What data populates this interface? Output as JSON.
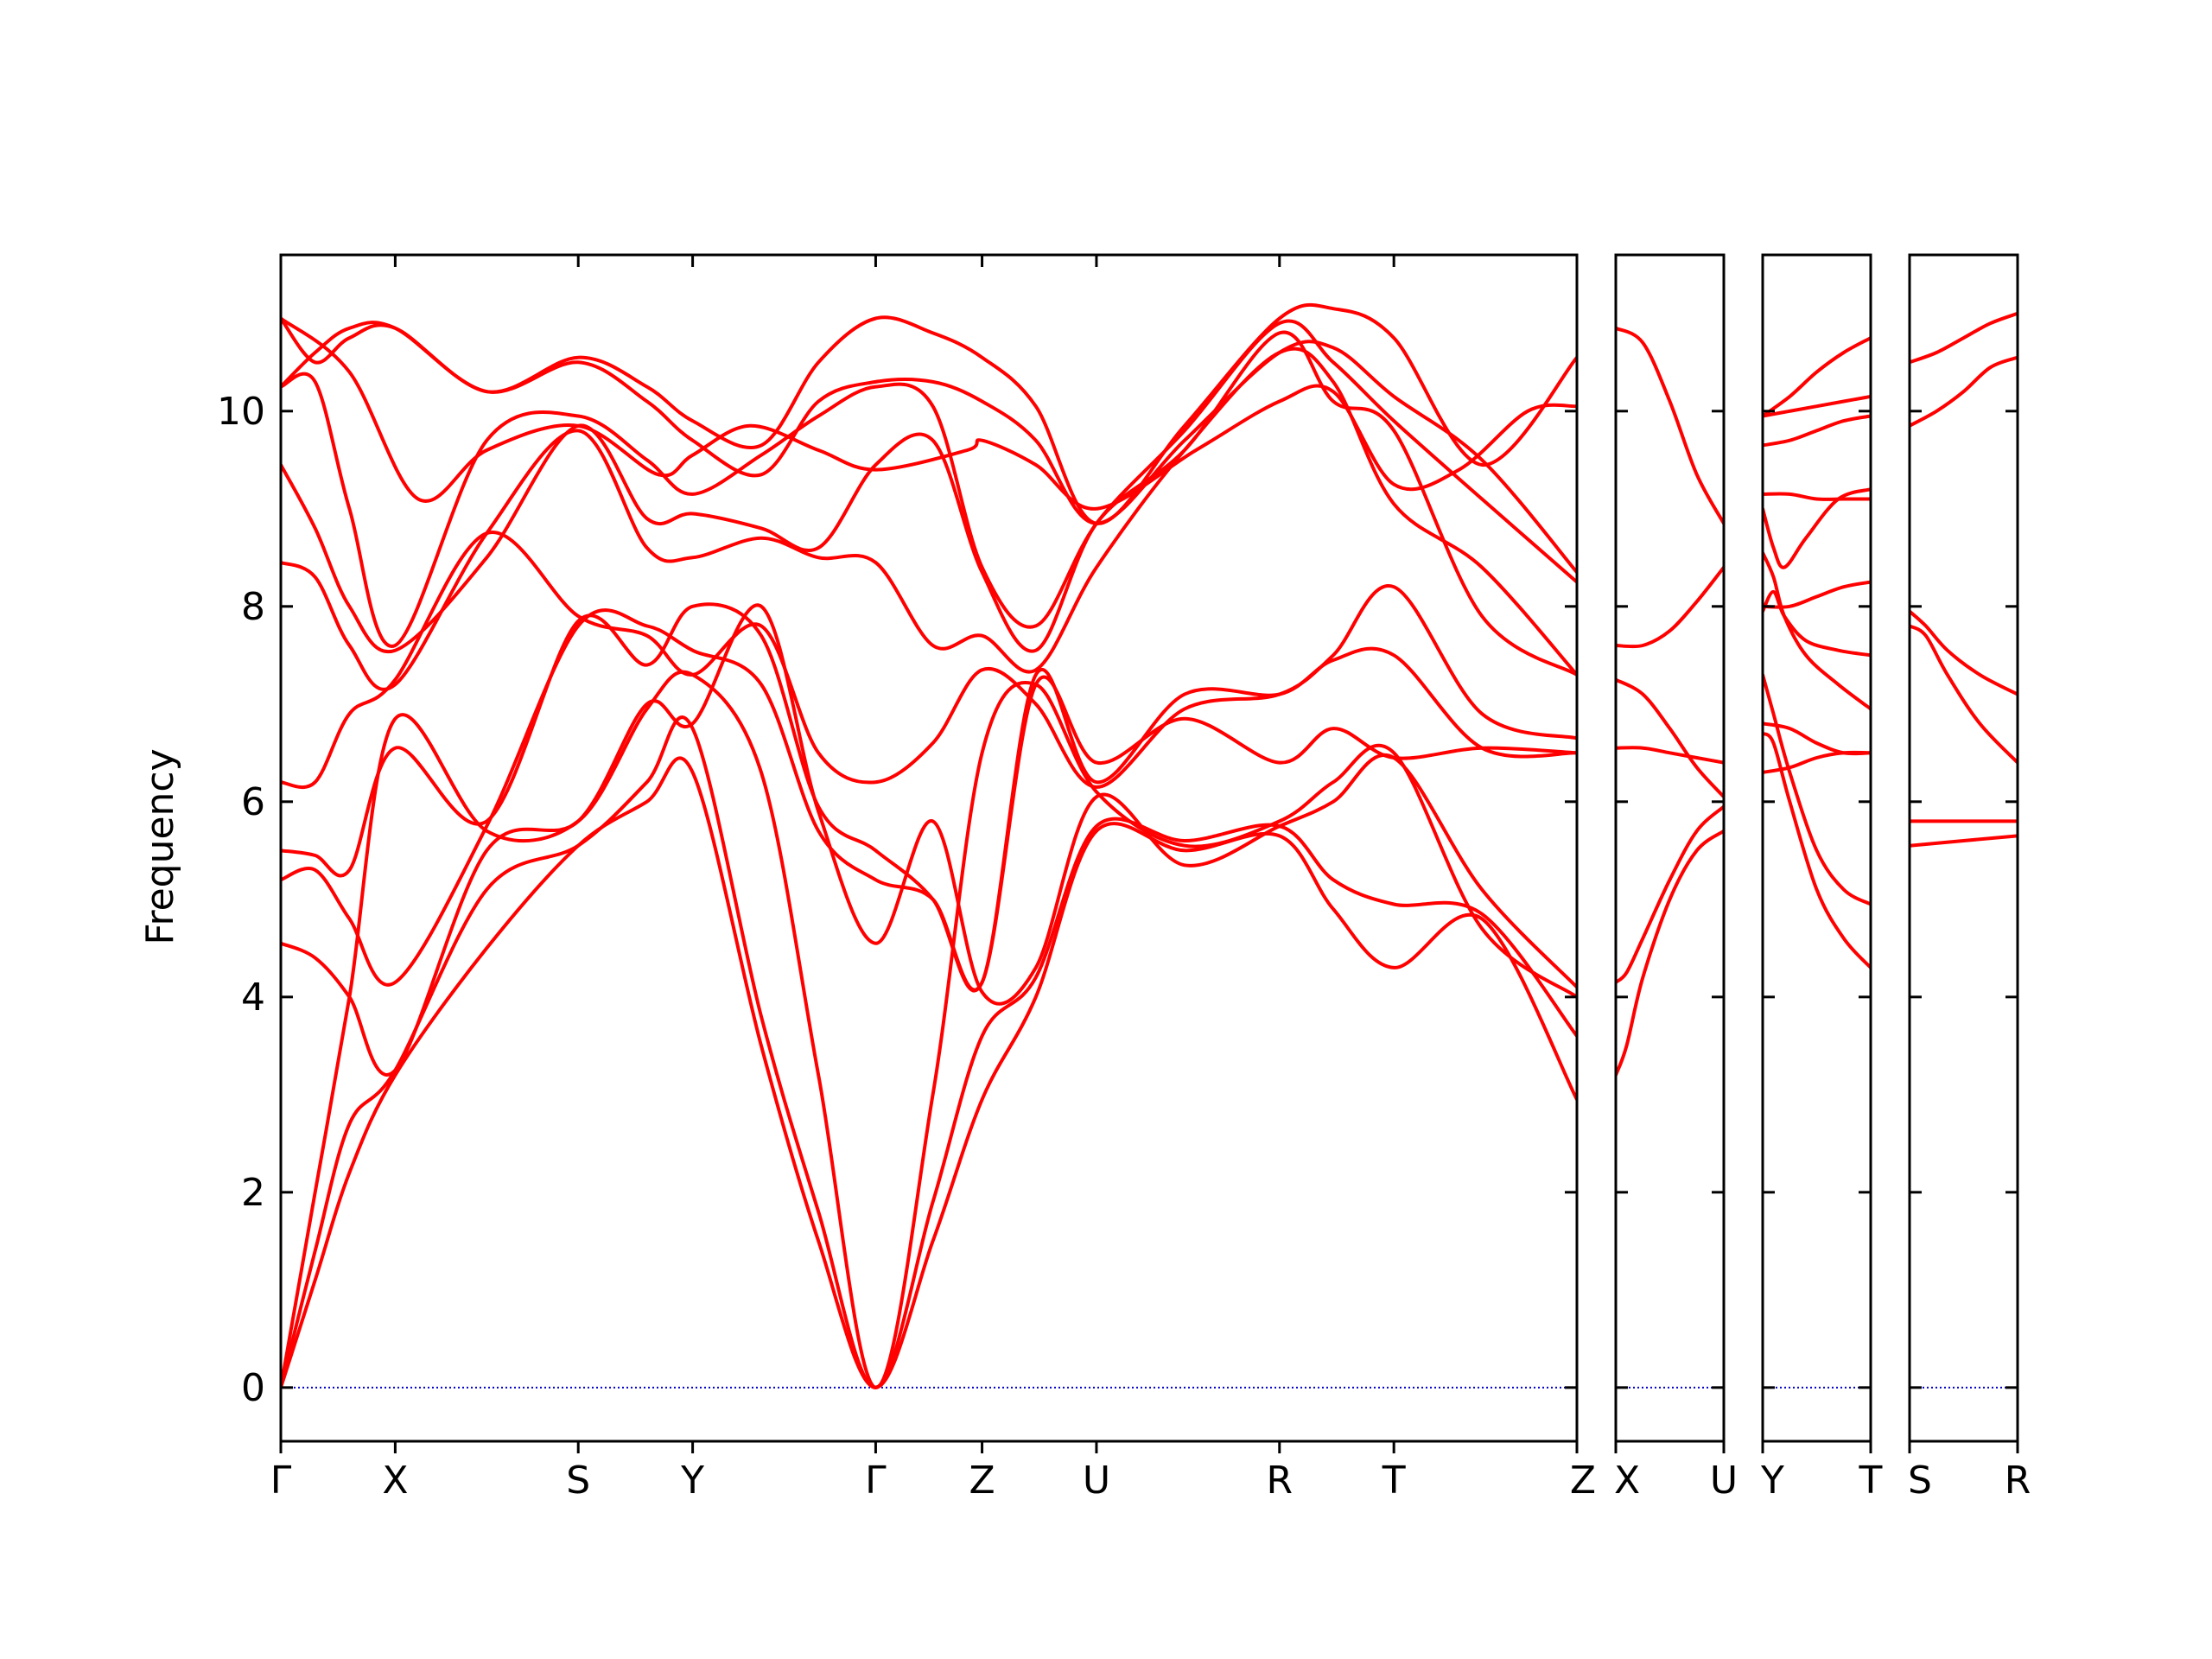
{
  "chart_data": {
    "type": "line",
    "title": "",
    "ylabel": "Frequency",
    "xlabel": "",
    "ylim": [
      -0.55,
      11.6
    ],
    "yticks": [
      0,
      2,
      4,
      6,
      8,
      10
    ],
    "band_color": "#ff0000",
    "zero_line_color": "#0000cc",
    "grid": false,
    "panels": [
      {
        "labels": [
          "Γ",
          "X",
          "S",
          "Y",
          "Γ",
          "Z",
          "U",
          "R",
          "T",
          "Z"
        ],
        "positions": [
          0,
          1.0,
          2.6,
          3.6,
          5.2,
          6.13,
          7.13,
          8.73,
          9.73,
          11.33
        ],
        "bands": [
          {
            "x": [
              0,
              0.3,
              0.6,
              1.0,
              1.8,
              2.6,
              3.2,
              3.6,
              4.2,
              4.7,
              5.2,
              5.7,
              6.13,
              6.6,
              7.13,
              7.9,
              8.73,
              9.2,
              9.73,
              10.5,
              11.33
            ],
            "y": [
              0,
              1.1,
              2.2,
              3.2,
              4.5,
              5.55,
              6.0,
              6.3,
              3.5,
              1.5,
              0,
              1.5,
              2.95,
              4.0,
              5.7,
              5.5,
              5.65,
              4.9,
              4.3,
              4.8,
              2.95
            ]
          },
          {
            "x": [
              0,
              0.3,
              0.6,
              1.0,
              1.8,
              2.6,
              3.2,
              3.6,
              4.2,
              4.7,
              5.2,
              5.7,
              6.13,
              6.6,
              7.13,
              7.9,
              8.73,
              9.2,
              9.73,
              10.5,
              11.33
            ],
            "y": [
              0,
              1.4,
              2.7,
              3.25,
              5.1,
              5.55,
              6.2,
              6.75,
              3.8,
              1.8,
              0,
              1.9,
              3.6,
              4.2,
              5.75,
              5.6,
              5.75,
              5.2,
              4.95,
              4.85,
              3.6
            ]
          },
          {
            "x": [
              0,
              0.3,
              0.6,
              1.0,
              1.8,
              2.6,
              3.2,
              3.6,
              4.2,
              4.7,
              5.2,
              5.7,
              6.13,
              6.6,
              7.13,
              7.9,
              8.73,
              9.2,
              9.73,
              10.5,
              11.33
            ],
            "y": [
              0,
              2.0,
              4.0,
              6.85,
              5.7,
              5.8,
              6.95,
              7.3,
              6.3,
              3.2,
              0,
              3.0,
              6.5,
              7.2,
              6.1,
              5.55,
              5.8,
              6.2,
              6.5,
              4.7,
              4.0
            ]
          },
          {
            "x": [
              0,
              0.3,
              0.6,
              1.0,
              1.8,
              2.6,
              3.2,
              3.6,
              4.2,
              4.7,
              5.2,
              5.7,
              6.13,
              6.6,
              7.13,
              7.9,
              8.73,
              9.2,
              9.73,
              10.5,
              11.33
            ],
            "y": [
              4.55,
              4.4,
              4.0,
              3.25,
              5.5,
              5.8,
              7.0,
              6.8,
              8.0,
              5.9,
              4.55,
              5.8,
              4.05,
              4.3,
              6.05,
              5.35,
              5.75,
              6.0,
              6.45,
              5.1,
              4.1
            ]
          },
          {
            "x": [
              0,
              0.3,
              0.6,
              1.0,
              1.8,
              2.6,
              3.2,
              3.6,
              4.2,
              4.7,
              5.2,
              5.7,
              6.13,
              6.6,
              7.13,
              7.9,
              8.73,
              9.2,
              9.73,
              10.5,
              11.33
            ],
            "y": [
              5.2,
              5.3,
              4.8,
              4.15,
              5.75,
              7.8,
              7.8,
              7.55,
              7.2,
              5.7,
              5.2,
              5.0,
              4.15,
              7.2,
              6.4,
              6.85,
              6.4,
              6.75,
              6.45,
              6.55,
              6.5
            ]
          },
          {
            "x": [
              0,
              0.3,
              0.6,
              1.0,
              1.8,
              2.6,
              3.2,
              3.6,
              4.2,
              4.7,
              5.2,
              5.7,
              6.13,
              6.6,
              7.13,
              7.9,
              8.73,
              9.2,
              9.73,
              10.5,
              11.33
            ],
            "y": [
              5.5,
              5.45,
              5.3,
              6.55,
              5.8,
              7.85,
              7.4,
              8.0,
              7.7,
              5.95,
              5.5,
              5.0,
              4.15,
              7.3,
              6.2,
              7.1,
              7.1,
              7.45,
              7.5,
              6.55,
              6.5
            ]
          },
          {
            "x": [
              0,
              0.3,
              0.6,
              1.0,
              1.8,
              2.6,
              3.2,
              3.6,
              4.2,
              4.7,
              5.2,
              5.7,
              6.13,
              6.6,
              7.13,
              7.9,
              8.73,
              9.2,
              9.73,
              10.5,
              11.33
            ],
            "y": [
              6.2,
              6.2,
              6.9,
              7.25,
              8.75,
              7.9,
              7.7,
              7.3,
              7.8,
              6.5,
              6.2,
              6.6,
              7.35,
              7.0,
              6.15,
              6.95,
              7.1,
              7.5,
              8.2,
              6.9,
              6.65
            ]
          },
          {
            "x": [
              0,
              0.3,
              0.6,
              1.0,
              1.8,
              2.6,
              3.2,
              3.6,
              4.2,
              4.7,
              5.2,
              5.7,
              6.13,
              6.6,
              7.13,
              7.9,
              8.73,
              9.2,
              9.73,
              10.5,
              11.33
            ],
            "y": [
              8.45,
              8.3,
              7.6,
              7.2,
              8.75,
              9.8,
              8.6,
              8.5,
              8.7,
              8.5,
              8.45,
              7.6,
              7.7,
              7.35,
              8.4,
              9.6,
              10.6,
              10.3,
              9.05,
              8.4,
              7.3
            ]
          },
          {
            "x": [
              0,
              0.3,
              0.6,
              1.0,
              1.8,
              2.6,
              3.2,
              3.6,
              4.2,
              4.7,
              5.2,
              5.7,
              6.13,
              6.6,
              7.13,
              7.9,
              8.73,
              9.2,
              9.73,
              10.5,
              11.33
            ],
            "y": [
              9.45,
              8.8,
              8.0,
              7.55,
              8.5,
              9.85,
              8.9,
              8.95,
              8.8,
              8.6,
              9.45,
              9.7,
              8.35,
              7.55,
              8.85,
              9.6,
              10.8,
              10.1,
              9.8,
              7.9,
              7.3
            ]
          },
          {
            "x": [
              0,
              0.3,
              0.6,
              1.0,
              1.8,
              2.6,
              3.2,
              3.6,
              4.2,
              4.7,
              5.2,
              5.7,
              6.13,
              6.6,
              7.13,
              7.9,
              8.73,
              9.2,
              9.73,
              10.5,
              11.33
            ],
            "y": [
              10.25,
              10.3,
              9.0,
              7.6,
              9.7,
              9.95,
              9.5,
              9.15,
              9.55,
              9.95,
              10.25,
              10.05,
              8.4,
              7.8,
              8.85,
              9.8,
              10.9,
              10.5,
              9.9,
              9.1,
              8.25
            ]
          },
          {
            "x": [
              0,
              0.3,
              0.6,
              1.0,
              1.8,
              2.6,
              3.2,
              3.6,
              4.2,
              4.7,
              5.2,
              5.7,
              6.13,
              6.6,
              7.13,
              7.9,
              8.73,
              9.2,
              9.73,
              10.5,
              11.33
            ],
            "y": [
              10.25,
              10.6,
              10.85,
              10.85,
              10.2,
              10.5,
              10.1,
              9.7,
              9.35,
              10.1,
              10.3,
              10.3,
              10.1,
              9.7,
              8.85,
              9.7,
              10.6,
              10.65,
              10.15,
              9.5,
              8.35
            ]
          },
          {
            "x": [
              0,
              0.3,
              0.6,
              1.0,
              1.8,
              2.6,
              3.2,
              3.6,
              4.2,
              4.7,
              5.2,
              5.7,
              6.13,
              6.6,
              7.13,
              7.9,
              8.73,
              9.2,
              9.73,
              10.5,
              11.33
            ],
            "y": [
              10.95,
              10.5,
              10.75,
              10.85,
              10.2,
              10.55,
              10.25,
              9.9,
              9.65,
              10.5,
              10.95,
              10.8,
              10.55,
              10.05,
              8.85,
              9.85,
              10.95,
              11.05,
              10.75,
              9.45,
              10.55
            ]
          },
          {
            "x": [
              0,
              0.6,
              1.2,
              1.8,
              2.6,
              3.3,
              3.6,
              4.1,
              4.7,
              5.2,
              6.0,
              6.13,
              6.6,
              7.13,
              8.0,
              8.73,
              9.2,
              9.73,
              10.3,
              10.9,
              11.33
            ],
            "y": [
              10.95,
              10.4,
              9.1,
              9.6,
              9.85,
              9.35,
              9.55,
              9.85,
              9.6,
              9.4,
              9.6,
              9.7,
              9.45,
              9.0,
              9.6,
              10.1,
              10.2,
              9.25,
              9.4,
              10.0,
              10.05
            ]
          }
        ]
      },
      {
        "labels": [
          "X",
          "U"
        ],
        "positions": [
          0,
          1
        ],
        "bands": [
          {
            "x": [
              0,
              0.1,
              0.25,
              0.5,
              0.75,
              1
            ],
            "y": [
              3.2,
              3.5,
              4.2,
              5.0,
              5.5,
              5.7
            ]
          },
          {
            "x": [
              0,
              0.1,
              0.25,
              0.5,
              0.75,
              1
            ],
            "y": [
              4.15,
              4.25,
              4.6,
              5.2,
              5.7,
              5.95
            ]
          },
          {
            "x": [
              0,
              0.25,
              0.5,
              0.75,
              1
            ],
            "y": [
              6.55,
              6.55,
              6.5,
              6.45,
              6.4
            ]
          },
          {
            "x": [
              0,
              0.25,
              0.5,
              0.75,
              1
            ],
            "y": [
              7.25,
              7.1,
              6.75,
              6.35,
              6.05
            ]
          },
          {
            "x": [
              0,
              0.25,
              0.5,
              0.75,
              1
            ],
            "y": [
              7.6,
              7.6,
              7.75,
              8.05,
              8.4
            ]
          },
          {
            "x": [
              0,
              0.25,
              0.5,
              0.75,
              1
            ],
            "y": [
              10.85,
              10.7,
              10.1,
              9.35,
              8.85
            ]
          }
        ]
      },
      {
        "labels": [
          "Y",
          "T"
        ],
        "positions": [
          0,
          1
        ],
        "bands": [
          {
            "x": [
              0,
              0.1,
              0.25,
              0.5,
              0.75,
              1
            ],
            "y": [
              6.7,
              6.6,
              6.0,
              5.1,
              4.6,
              4.3
            ]
          },
          {
            "x": [
              0,
              0.1,
              0.25,
              0.5,
              0.75,
              1
            ],
            "y": [
              7.3,
              6.9,
              6.3,
              5.5,
              5.1,
              4.95
            ]
          },
          {
            "x": [
              0,
              0.25,
              0.5,
              0.75,
              1
            ],
            "y": [
              6.3,
              6.35,
              6.45,
              6.5,
              6.5
            ]
          },
          {
            "x": [
              0,
              0.25,
              0.5,
              0.75,
              1
            ],
            "y": [
              6.8,
              6.75,
              6.6,
              6.5,
              6.5
            ]
          },
          {
            "x": [
              0,
              0.1,
              0.2,
              0.4,
              0.7,
              1
            ],
            "y": [
              8.55,
              8.3,
              7.9,
              7.5,
              7.2,
              6.95
            ]
          },
          {
            "x": [
              0,
              0.1,
              0.2,
              0.4,
              0.7,
              1
            ],
            "y": [
              7.95,
              8.15,
              7.9,
              7.65,
              7.55,
              7.5
            ]
          },
          {
            "x": [
              0,
              0.25,
              0.5,
              0.75,
              1
            ],
            "y": [
              8.0,
              8.0,
              8.1,
              8.2,
              8.25
            ]
          },
          {
            "x": [
              0,
              0.1,
              0.2,
              0.4,
              0.7,
              1
            ],
            "y": [
              9.0,
              8.6,
              8.4,
              8.7,
              9.1,
              9.2
            ]
          },
          {
            "x": [
              0,
              0.25,
              0.5,
              0.75,
              1
            ],
            "y": [
              9.15,
              9.15,
              9.1,
              9.1,
              9.1
            ]
          },
          {
            "x": [
              0,
              0.25,
              0.5,
              0.75,
              1
            ],
            "y": [
              9.65,
              9.7,
              9.8,
              9.9,
              9.95
            ]
          },
          {
            "x": [
              0,
              0.25,
              0.5,
              0.75,
              1
            ],
            "y": [
              9.95,
              10.0,
              10.05,
              10.1,
              10.15
            ]
          },
          {
            "x": [
              0,
              0.25,
              0.5,
              0.75,
              1
            ],
            "y": [
              9.95,
              10.15,
              10.4,
              10.6,
              10.75
            ]
          }
        ]
      },
      {
        "labels": [
          "S",
          "R"
        ],
        "positions": [
          0,
          1
        ],
        "bands": [
          {
            "x": [
              0,
              0.5,
              1
            ],
            "y": [
              5.55,
              5.6,
              5.65
            ]
          },
          {
            "x": [
              0,
              0.5,
              1
            ],
            "y": [
              5.8,
              5.8,
              5.8
            ]
          },
          {
            "x": [
              0,
              0.15,
              0.35,
              0.65,
              1
            ],
            "y": [
              7.8,
              7.7,
              7.3,
              6.8,
              6.4
            ]
          },
          {
            "x": [
              0,
              0.15,
              0.35,
              0.65,
              1
            ],
            "y": [
              7.95,
              7.8,
              7.55,
              7.3,
              7.1
            ]
          },
          {
            "x": [
              0,
              0.25,
              0.5,
              0.75,
              1
            ],
            "y": [
              9.85,
              10.0,
              10.2,
              10.45,
              10.55
            ]
          },
          {
            "x": [
              0,
              0.25,
              0.5,
              0.75,
              1
            ],
            "y": [
              10.5,
              10.6,
              10.75,
              10.9,
              11.0
            ]
          }
        ]
      }
    ]
  }
}
